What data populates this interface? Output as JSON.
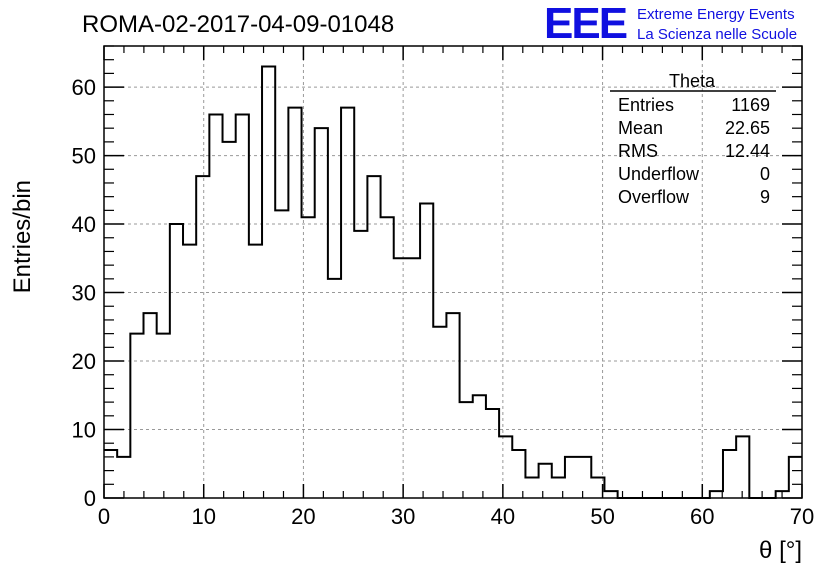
{
  "chart_data": {
    "type": "bar",
    "histogram": true,
    "title": "ROMA-02-2017-04-09-01048",
    "xlabel": "θ [°]",
    "ylabel": "Entries/bin",
    "xlim": [
      0,
      70
    ],
    "ylim": [
      0,
      66
    ],
    "grid": true,
    "bin_width": 1.6667,
    "x_ticks": [
      "0",
      "10",
      "20",
      "30",
      "40",
      "50",
      "60",
      "70"
    ],
    "y_ticks": [
      "0",
      "10",
      "20",
      "30",
      "40",
      "50",
      "60"
    ],
    "values": [
      7,
      6,
      24,
      27,
      24,
      40,
      37,
      47,
      56,
      52,
      56,
      37,
      63,
      42,
      57,
      41,
      54,
      32,
      57,
      39,
      47,
      41,
      35,
      35,
      43,
      25,
      27,
      14,
      15,
      13,
      9,
      7,
      3,
      5,
      3,
      6,
      6,
      3,
      1,
      0,
      0,
      0,
      0,
      0,
      0,
      0,
      1,
      7,
      9,
      0,
      0,
      1,
      6
    ],
    "line_color": "#000000"
  },
  "stats_box": {
    "name": "Theta",
    "rows": [
      {
        "label": "Entries",
        "value": "1169"
      },
      {
        "label": "Mean",
        "value": "22.65"
      },
      {
        "label": "RMS",
        "value": "12.44"
      },
      {
        "label": "Underflow",
        "value": "0"
      },
      {
        "label": "Overflow",
        "value": "9"
      }
    ]
  },
  "logo": {
    "mark": "EEE",
    "line1": "Extreme Energy Events",
    "line2": "La Scienza nelle Scuole",
    "color": "#1010e0"
  }
}
